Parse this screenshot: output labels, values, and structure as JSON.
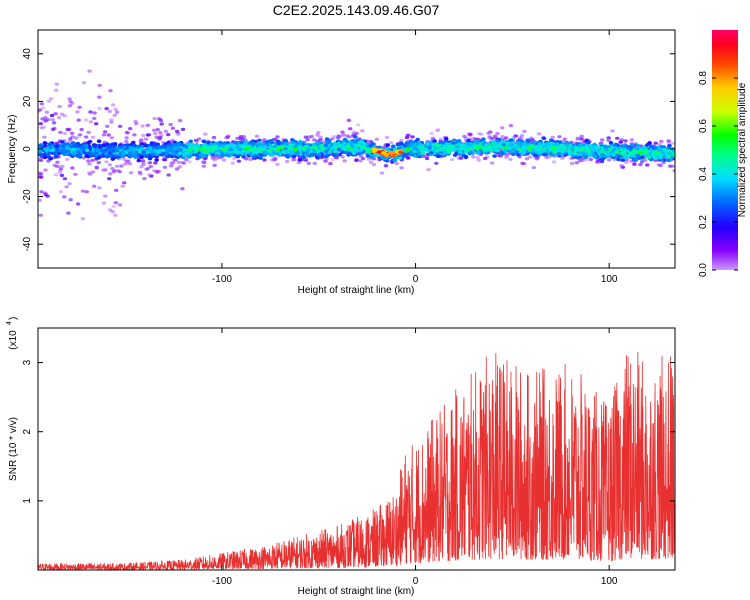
{
  "title": "C2E2.2025.143.09.46.G07",
  "chart_data": [
    {
      "type": "heatmap",
      "xlabel": "Height of straight line (km)",
      "ylabel": "Frequency (Hz)",
      "xlim": [
        -195,
        134
      ],
      "ylim": [
        -50,
        50
      ],
      "x_ticks": [
        -100,
        0,
        100
      ],
      "x_tick_labels": [
        "-100",
        "0",
        "100"
      ],
      "y_ticks": [
        -40,
        -20,
        0,
        20,
        40
      ],
      "y_tick_labels": [
        "-40",
        "-20",
        "0",
        "20",
        "40"
      ],
      "grid": false,
      "colorbar": {
        "label": "Normalized spectral amplitude",
        "range": [
          0,
          1
        ],
        "ticks": [
          0.0,
          0.2,
          0.4,
          0.6,
          0.8
        ],
        "tick_labels": [
          "0.0",
          "0.2",
          "0.4",
          "0.6",
          "0.8"
        ],
        "colors": [
          "#cc99ff",
          "#7700ff",
          "#0000ff",
          "#00a0ff",
          "#00ffcc",
          "#00ff00",
          "#ccff00",
          "#ffcc00",
          "#ff6600",
          "#ff0000",
          "#ff0066"
        ]
      },
      "description_of_values": {
        "main_band_center_hz": [
          [
            -195,
            0
          ],
          [
            -150,
            -1
          ],
          [
            -100,
            0
          ],
          [
            -50,
            0
          ],
          [
            -30,
            1
          ],
          [
            -20,
            -1
          ],
          [
            -15,
            -2
          ],
          [
            -10,
            -2
          ],
          [
            -5,
            0
          ],
          [
            0,
            0
          ],
          [
            50,
            1
          ],
          [
            100,
            -1
          ],
          [
            134,
            -2
          ]
        ],
        "band_half_width_hz": 5,
        "peak_region_km": [
          -22,
          -7
        ],
        "peak_amplitude": 0.95
      }
    },
    {
      "type": "line",
      "xlabel": "Height of straight line (km)",
      "ylabel": "SNR (10 * v/v)",
      "y_scale_label": "(x10",
      "y_scale_exponent": "4",
      "xlim": [
        -195,
        134
      ],
      "ylim": [
        0,
        3.5
      ],
      "x_ticks": [
        -100,
        0,
        100
      ],
      "x_tick_labels": [
        "-100",
        "0",
        "100"
      ],
      "y_ticks": [
        1,
        2,
        3
      ],
      "y_tick_labels": [
        "1",
        "2",
        "3"
      ],
      "grid": false,
      "color": "#e83030",
      "envelope": {
        "x": [
          -195,
          -150,
          -120,
          -100,
          -80,
          -60,
          -40,
          -20,
          -10,
          -5,
          0,
          20,
          40,
          60,
          80,
          100,
          110,
          120,
          134
        ],
        "y": [
          0.1,
          0.1,
          0.15,
          0.25,
          0.35,
          0.5,
          0.65,
          0.9,
          1.2,
          1.8,
          1.9,
          2.6,
          3.2,
          2.9,
          3.0,
          2.4,
          3.3,
          3.0,
          3.2
        ]
      }
    }
  ]
}
